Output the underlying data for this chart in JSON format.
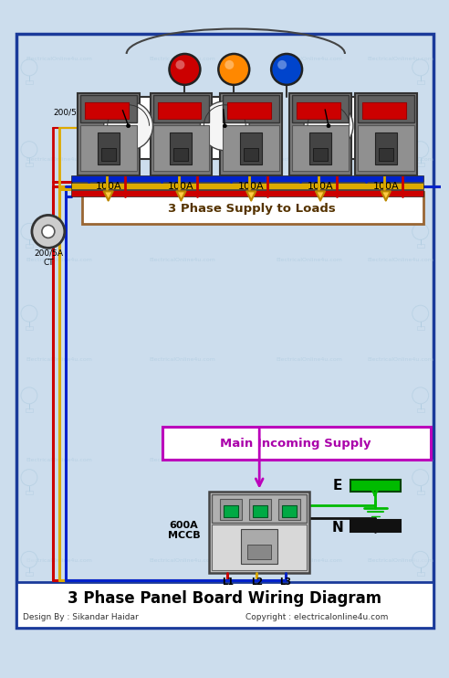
{
  "title": "3 Phase Panel Board Wiring Diagram",
  "subtitle_left": "Design By : Sikandar Haidar",
  "subtitle_right": "Copyright : electricalonline4u.com",
  "bg_color": "#ccdded",
  "border_color": "#1a3a9a",
  "phase_colors": [
    "#cc0000",
    "#ddaa00",
    "#0022cc"
  ],
  "neutral_color": "#111111",
  "earth_color": "#00bb00",
  "indicator_colors": [
    "#cc0000",
    "#ff8800",
    "#0044cc"
  ],
  "bus_colors": [
    "#0022cc",
    "#ddaa00",
    "#cc0000"
  ],
  "mccb_label": "600A\nMCCB",
  "mccb_terminal_labels": [
    "L1",
    "L2",
    "L3"
  ],
  "ct_label": "200/5A\nCT",
  "ammeter_label": "200/5A",
  "supply_box_text": "3 Phase Supply to Loads",
  "incoming_box_text": "Main Incoming Supply",
  "breaker_labels": [
    "100A",
    "100A",
    "100A",
    "100A",
    "100A"
  ],
  "earth_label": "E",
  "neutral_label": "N",
  "title_fontsize": 12,
  "subtitle_fontsize": 6.5,
  "watermark_color": "#b0cce0"
}
